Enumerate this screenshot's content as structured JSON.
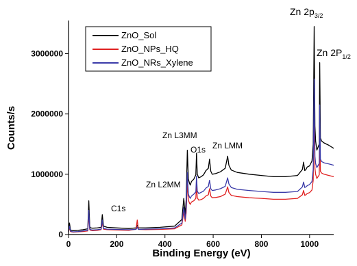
{
  "chart_data": {
    "type": "line",
    "title": "",
    "xlabel": "Binding Energy (eV)",
    "ylabel": "Counts/s",
    "xlim": [
      0,
      1100
    ],
    "ylim": [
      0,
      3550000
    ],
    "xticks": [
      0,
      200,
      400,
      600,
      800,
      1000
    ],
    "yticks": [
      1000000,
      2000000,
      3000000
    ],
    "xtick_labels": [
      "0",
      "200",
      "400",
      "600",
      "800",
      "1000"
    ],
    "ytick_labels": [
      "0",
      "1000000",
      "2000000",
      "3000000"
    ],
    "grid": false,
    "legend_position": "upper-left",
    "series": [
      {
        "name": "ZnO_Sol",
        "color": "#000000",
        "x": [
          0,
          4,
          8,
          12,
          20,
          40,
          60,
          80,
          84,
          88,
          92,
          100,
          120,
          135,
          140,
          145,
          160,
          200,
          250,
          280,
          285,
          290,
          320,
          380,
          440,
          470,
          478,
          484,
          488,
          493,
          497,
          502,
          505,
          510,
          520,
          528,
          531,
          534,
          540,
          550,
          560,
          570,
          580,
          585,
          590,
          596,
          610,
          630,
          650,
          660,
          665,
          675,
          700,
          750,
          800,
          850,
          900,
          950,
          970,
          975,
          980,
          985,
          990,
          1000,
          1010,
          1015,
          1019,
          1022,
          1025,
          1030,
          1040,
          1042,
          1045,
          1050,
          1060,
          1080,
          1100
        ],
        "y": [
          60000,
          190000,
          80000,
          70000,
          65000,
          70000,
          80000,
          95000,
          560000,
          130000,
          110000,
          105000,
          110000,
          120000,
          330000,
          140000,
          120000,
          110000,
          100000,
          110000,
          155000,
          110000,
          110000,
          120000,
          140000,
          250000,
          600000,
          330000,
          580000,
          1400000,
          920000,
          850000,
          820000,
          880000,
          920000,
          990000,
          1350000,
          1000000,
          940000,
          960000,
          990000,
          1060000,
          1100000,
          1250000,
          1050000,
          1000000,
          1010000,
          1040000,
          1100000,
          1300000,
          1150000,
          1070000,
          1030000,
          1000000,
          980000,
          960000,
          960000,
          980000,
          1080000,
          1200000,
          1060000,
          1080000,
          1120000,
          1140000,
          1220000,
          1500000,
          3450000,
          1800000,
          1550000,
          1400000,
          1500000,
          2850000,
          1600000,
          1550000,
          1520000,
          1480000,
          1430000
        ]
      },
      {
        "name": "ZnO_NPs_HQ",
        "color": "#e02020",
        "x": [
          0,
          4,
          8,
          12,
          20,
          40,
          60,
          80,
          84,
          88,
          92,
          100,
          120,
          135,
          140,
          145,
          160,
          200,
          250,
          280,
          285,
          290,
          320,
          380,
          440,
          470,
          478,
          484,
          488,
          493,
          497,
          502,
          505,
          510,
          520,
          528,
          531,
          534,
          540,
          550,
          560,
          570,
          580,
          585,
          590,
          596,
          610,
          630,
          650,
          660,
          665,
          675,
          700,
          750,
          800,
          850,
          900,
          950,
          970,
          975,
          980,
          985,
          990,
          1000,
          1010,
          1015,
          1019,
          1022,
          1025,
          1030,
          1040,
          1042,
          1045,
          1050,
          1060,
          1080,
          1100
        ],
        "y": [
          40000,
          120000,
          50000,
          45000,
          40000,
          45000,
          50000,
          60000,
          330000,
          80000,
          70000,
          65000,
          70000,
          80000,
          200000,
          90000,
          80000,
          75000,
          70000,
          90000,
          240000,
          85000,
          80000,
          85000,
          95000,
          160000,
          380000,
          220000,
          360000,
          870000,
          570000,
          520000,
          500000,
          540000,
          560000,
          600000,
          820000,
          610000,
          570000,
          580000,
          600000,
          640000,
          660000,
          760000,
          640000,
          610000,
          615000,
          630000,
          670000,
          790000,
          700000,
          650000,
          630000,
          610000,
          600000,
          585000,
          585000,
          600000,
          660000,
          730000,
          650000,
          660000,
          680000,
          695000,
          740000,
          900000,
          2100000,
          1100000,
          1000000,
          930000,
          990000,
          1750000,
          1050000,
          1020000,
          1000000,
          980000,
          960000
        ]
      },
      {
        "name": "ZnO_NRs_Xylene",
        "color": "#3a3aa8",
        "x": [
          0,
          4,
          8,
          12,
          20,
          40,
          60,
          80,
          84,
          88,
          92,
          100,
          120,
          135,
          140,
          145,
          160,
          200,
          250,
          280,
          285,
          290,
          320,
          380,
          440,
          470,
          478,
          484,
          488,
          493,
          497,
          502,
          505,
          510,
          520,
          528,
          531,
          534,
          540,
          550,
          560,
          570,
          580,
          585,
          590,
          596,
          610,
          630,
          650,
          660,
          665,
          675,
          700,
          750,
          800,
          850,
          900,
          950,
          970,
          975,
          980,
          985,
          990,
          1000,
          1010,
          1015,
          1019,
          1022,
          1025,
          1030,
          1040,
          1042,
          1045,
          1050,
          1060,
          1080,
          1100
        ],
        "y": [
          45000,
          140000,
          60000,
          50000,
          45000,
          50000,
          60000,
          70000,
          400000,
          95000,
          80000,
          75000,
          80000,
          90000,
          240000,
          100000,
          90000,
          85000,
          80000,
          85000,
          120000,
          85000,
          90000,
          95000,
          110000,
          190000,
          450000,
          260000,
          430000,
          1030000,
          670000,
          620000,
          600000,
          640000,
          670000,
          710000,
          970000,
          720000,
          680000,
          700000,
          720000,
          770000,
          800000,
          900000,
          760000,
          730000,
          740000,
          760000,
          800000,
          940000,
          840000,
          780000,
          750000,
          730000,
          715000,
          700000,
          700000,
          715000,
          790000,
          870000,
          780000,
          790000,
          810000,
          830000,
          880000,
          1080000,
          2580000,
          1300000,
          1180000,
          1110000,
          1180000,
          2150000,
          1250000,
          1210000,
          1190000,
          1170000,
          1150000
        ]
      }
    ],
    "annotations": [
      {
        "text": "C1s",
        "x": 275,
        "y": 150000
      },
      {
        "text": "Zn L2MM",
        "x": 468,
        "y": 650000
      },
      {
        "text": "Zn L3MM",
        "x": 485,
        "y": 1420000
      },
      {
        "text": "O1s",
        "x": 525,
        "y": 1330000
      },
      {
        "text": "Zn LMM",
        "x": 635,
        "y": 1170000
      }
    ],
    "peak_labels": [
      {
        "main": "Zn 2p",
        "sub": "3/2",
        "x": 1020,
        "y": 3450000
      },
      {
        "main": "Zn 2P",
        "sub": "1/2",
        "x": 1040,
        "y": 2850000
      }
    ]
  }
}
